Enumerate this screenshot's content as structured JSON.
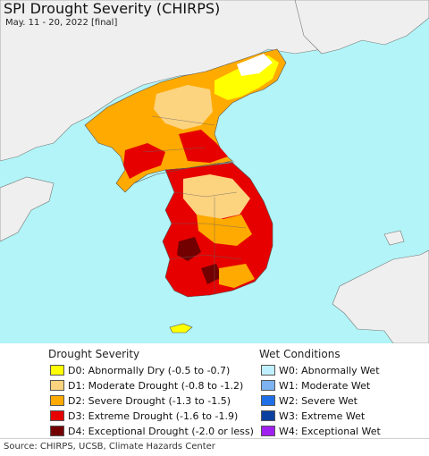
{
  "header": {
    "title": "SPI Drought Severity (CHIRPS)",
    "subtitle": "May. 11 - 20, 2022 [final]"
  },
  "map": {
    "colors": {
      "ocean": "#b2f4f7",
      "land_neighbor": "#efefef",
      "no_drought": "#ffffff",
      "D0": "#ffff00",
      "D1": "#fcd37f",
      "D2": "#ffaa00",
      "D3": "#e60000",
      "D4": "#730000",
      "border": "#555555"
    }
  },
  "legend": {
    "drought": {
      "heading": "Drought Severity",
      "items": [
        {
          "label": "D0: Abnormally Dry (-0.5 to -0.7)",
          "color": "#ffff00"
        },
        {
          "label": "D1: Moderate Drought (-0.8 to -1.2)",
          "color": "#fcd37f"
        },
        {
          "label": "D2: Severe Drought (-1.3 to -1.5)",
          "color": "#ffaa00"
        },
        {
          "label": "D3: Extreme Drought (-1.6 to -1.9)",
          "color": "#e60000"
        },
        {
          "label": "D4: Exceptional Drought (-2.0 or less)",
          "color": "#730000"
        }
      ]
    },
    "wet": {
      "heading": "Wet Conditions",
      "items": [
        {
          "label": "W0: Abnormally Wet",
          "color": "#bfeffc"
        },
        {
          "label": "W1: Moderate Wet",
          "color": "#7cb3f0"
        },
        {
          "label": "W2: Severe Wet",
          "color": "#1e6fe8"
        },
        {
          "label": "W3: Extreme Wet",
          "color": "#0a3fa0"
        },
        {
          "label": "W4: Exceptional Wet",
          "color": "#a020f0"
        }
      ]
    }
  },
  "footer": {
    "source": "Source: CHIRPS, UCSB, Climate Hazards Center"
  }
}
